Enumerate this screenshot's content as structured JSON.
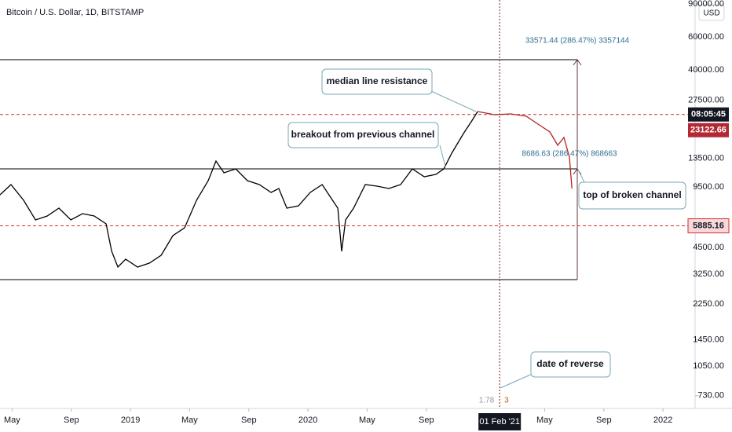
{
  "chart_data": {
    "type": "line",
    "title": "Bitcoin / U.S. Dollar, 1D, BITSTAMP",
    "currency": "USD",
    "log_scale": true,
    "x": [
      2018.265,
      2018.327,
      2018.398,
      2018.465,
      2018.531,
      2018.597,
      2018.664,
      2018.73,
      2018.796,
      2018.863,
      2018.894,
      2018.929,
      2018.973,
      2019.04,
      2019.106,
      2019.173,
      2019.239,
      2019.305,
      2019.372,
      2019.438,
      2019.482,
      2019.527,
      2019.593,
      2019.659,
      2019.726,
      2019.792,
      2019.836,
      2019.881,
      2019.947,
      2020.013,
      2020.08,
      2020.124,
      2020.168,
      2020.19,
      2020.212,
      2020.257,
      2020.323,
      2020.389,
      2020.456,
      2020.522,
      2020.588,
      2020.655,
      2020.721,
      2020.765,
      2020.81,
      2020.876,
      2020.92,
      2020.956,
      2021.053,
      2021.142,
      2021.23,
      2021.296,
      2021.363,
      2021.407,
      2021.442,
      2021.473,
      2021.487
    ],
    "series": [
      {
        "color": "#000000",
        "values": [
          8616,
          9766,
          8051,
          6325,
          6640,
          7313,
          6325,
          6834,
          6640,
          6029,
          4300,
          3545,
          3904,
          3545,
          3721,
          4098,
          5216,
          5742,
          8051,
          10254,
          13048,
          11287,
          11846,
          10254,
          9766,
          8869,
          9308,
          7313,
          7527,
          8869,
          9766,
          8453,
          7313,
          4300,
          6325,
          7313,
          9766,
          9581,
          9308,
          9766,
          11846,
          10758,
          11076,
          11846,
          14368,
          18294,
          21151,
          23966,
          null,
          null,
          null,
          null,
          null,
          null,
          null,
          null,
          null
        ]
      },
      {
        "color": "#b22222",
        "values": [
          null,
          null,
          null,
          null,
          null,
          null,
          null,
          null,
          null,
          null,
          null,
          null,
          null,
          null,
          null,
          null,
          null,
          null,
          null,
          null,
          null,
          null,
          null,
          null,
          null,
          null,
          null,
          null,
          null,
          null,
          null,
          null,
          null,
          null,
          null,
          null,
          null,
          null,
          null,
          null,
          null,
          null,
          null,
          null,
          null,
          null,
          null,
          23966,
          23049,
          23283,
          22617,
          20546,
          18645,
          15828,
          17440,
          13689,
          9308
        ]
      }
    ],
    "xlim": [
      2018.265,
      2022.181
    ],
    "xticks": [
      {
        "value": 2018.333,
        "label": "May"
      },
      {
        "value": 2018.667,
        "label": "Sep"
      },
      {
        "value": 2019.0,
        "label": "2019"
      },
      {
        "value": 2019.333,
        "label": "May"
      },
      {
        "value": 2019.667,
        "label": "Sep"
      },
      {
        "value": 2020.0,
        "label": "2020"
      },
      {
        "value": 2020.333,
        "label": "May"
      },
      {
        "value": 2020.667,
        "label": "Sep"
      },
      {
        "value": 2021.333,
        "label": "May"
      },
      {
        "value": 2021.667,
        "label": "Sep"
      },
      {
        "value": 2022.0,
        "label": "2022"
      }
    ],
    "ylim": [
      624,
      94400
    ],
    "yticks": [
      {
        "value": 730,
        "label": "730.00"
      },
      {
        "value": 1050,
        "label": "1050.00"
      },
      {
        "value": 1450,
        "label": "1450.00"
      },
      {
        "value": 2250,
        "label": "2250.00"
      },
      {
        "value": 3250,
        "label": "3250.00"
      },
      {
        "value": 4500,
        "label": "4500.00"
      },
      {
        "value": 9500,
        "label": "9500.00"
      },
      {
        "value": 13500,
        "label": "13500.00"
      },
      {
        "value": 27500,
        "label": "27500.00"
      },
      {
        "value": 40000,
        "label": "40000.00"
      },
      {
        "value": 60000,
        "label": "60000.00"
      },
      {
        "value": 90000,
        "label": "90000.00"
      }
    ],
    "current_price": 23122.66,
    "countdown": "08:05:45",
    "support_level": 5885.16,
    "crosshair": {
      "value": 2021.08,
      "label": "01 Feb '21"
    },
    "crosshair_left": "1.78",
    "crosshair_right": "3",
    "measure_upper": "33571.44 (286.47%) 3357144",
    "measure_lower": "8686.63 (286.47%) 868663",
    "annotations": [
      "median line resistance",
      "breakout from previous channel",
      "top of broken channel",
      "date of reverse"
    ]
  }
}
